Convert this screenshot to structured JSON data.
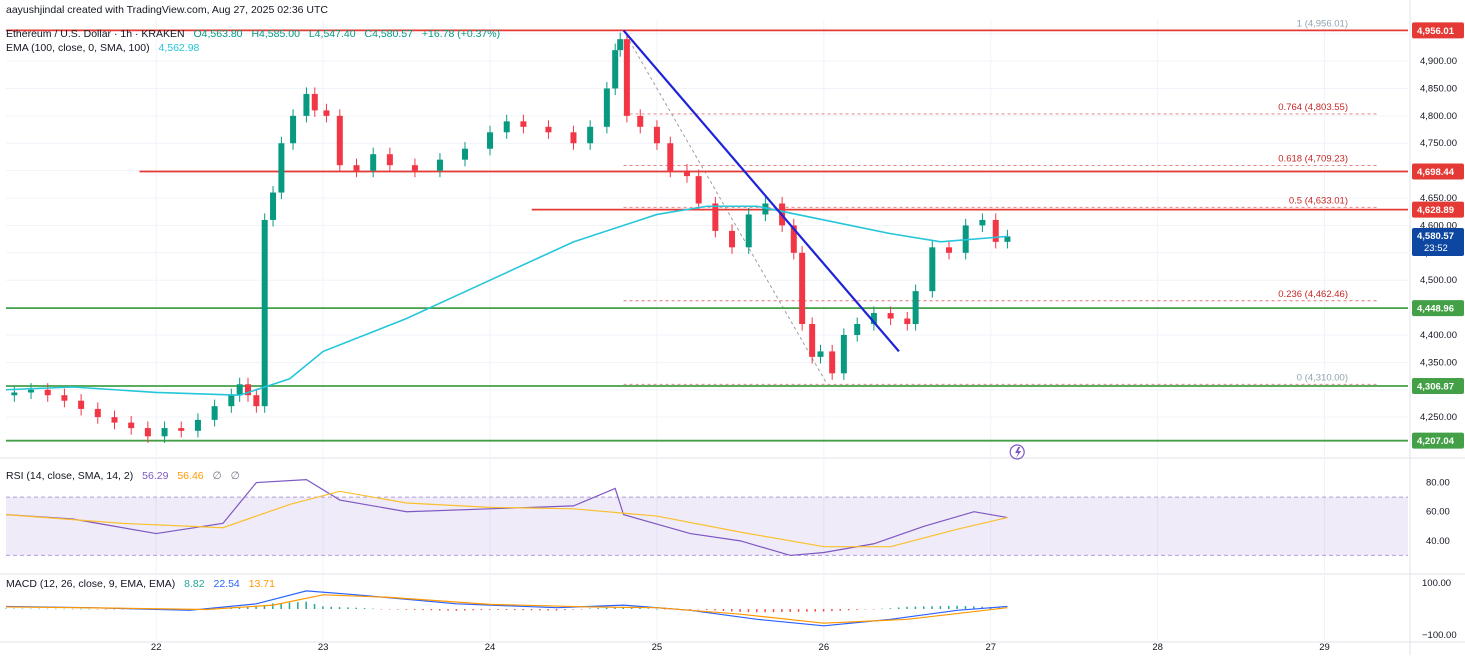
{
  "credit": "aayushjindal created with TradingView.com, Aug 27, 2025 02:36 UTC",
  "symbol": {
    "name": "Ethereum / U.S. Dollar · 1h · KRAKEN",
    "open": "O4,563.80",
    "high": "H4,585.00",
    "low": "L4,547.40",
    "close": "C4,580.57",
    "change": "+16.78 (+0.37%)"
  },
  "ema": {
    "label": "EMA (100, close, 0, SMA, 100)",
    "value": "4,562.98"
  },
  "rsi_header": {
    "label": "RSI (14, close, SMA, 14, 2)",
    "v1": "56.29",
    "v2": "56.46",
    "v3": "∅",
    "v4": "∅"
  },
  "macd_header": {
    "label": "MACD (12, 26, close, 9, EMA, EMA)",
    "v1": "8.82",
    "v2": "22.54",
    "v3": "13.71"
  },
  "currency": "USD",
  "colors": {
    "up": "#089981",
    "down": "#f23645",
    "ema": "#26c6da",
    "resistance": "#e53935",
    "support": "#43a047",
    "trendline": "#1e22d8",
    "rsi": "#7e57c2",
    "rsi_ma": "#fbc02d",
    "macd": "#2962ff",
    "signal": "#ff9800"
  },
  "chart_data": {
    "type": "candlestick",
    "title": "Ethereum / U.S. Dollar · 1h · KRAKEN",
    "ylim": [
      4190,
      4975
    ],
    "y_ticks": [
      4250,
      4300,
      4350,
      4400,
      4450,
      4500,
      4550,
      4600,
      4650,
      4700,
      4750,
      4800,
      4850,
      4900,
      4950
    ],
    "y_tick_labels": [
      "4,250.00",
      "4,300.00",
      "4,350.00",
      "4,400.00",
      "4,450.00",
      "4,500.00",
      "4,550.00",
      "4,600.00",
      "4,650.00",
      "4,700.00",
      "4,750.00",
      "4,800.00",
      "4,850.00",
      "4,900.00",
      "4,950.00"
    ],
    "x_ticks": [
      22,
      23,
      24,
      25,
      26,
      27,
      28,
      29
    ],
    "x_tick_labels": [
      "22",
      "23",
      "24",
      "25",
      "26",
      "27",
      "28",
      "29"
    ],
    "xlim": [
      21.1,
      29.5
    ],
    "close_series": [
      [
        21.15,
        4295
      ],
      [
        21.25,
        4300
      ],
      [
        21.35,
        4290
      ],
      [
        21.45,
        4280
      ],
      [
        21.55,
        4265
      ],
      [
        21.65,
        4250
      ],
      [
        21.75,
        4240
      ],
      [
        21.85,
        4230
      ],
      [
        21.95,
        4215
      ],
      [
        22.05,
        4230
      ],
      [
        22.15,
        4225
      ],
      [
        22.25,
        4245
      ],
      [
        22.35,
        4270
      ],
      [
        22.45,
        4290
      ],
      [
        22.5,
        4310
      ],
      [
        22.55,
        4290
      ],
      [
        22.6,
        4270
      ],
      [
        22.65,
        4610
      ],
      [
        22.7,
        4660
      ],
      [
        22.75,
        4750
      ],
      [
        22.82,
        4800
      ],
      [
        22.9,
        4840
      ],
      [
        22.95,
        4810
      ],
      [
        23.02,
        4800
      ],
      [
        23.1,
        4710
      ],
      [
        23.2,
        4700
      ],
      [
        23.3,
        4730
      ],
      [
        23.4,
        4710
      ],
      [
        23.55,
        4700
      ],
      [
        23.7,
        4720
      ],
      [
        23.85,
        4740
      ],
      [
        24.0,
        4770
      ],
      [
        24.1,
        4790
      ],
      [
        24.2,
        4780
      ],
      [
        24.35,
        4770
      ],
      [
        24.5,
        4750
      ],
      [
        24.6,
        4780
      ],
      [
        24.7,
        4850
      ],
      [
        24.75,
        4920
      ],
      [
        24.78,
        4940
      ],
      [
        24.82,
        4800
      ],
      [
        24.9,
        4780
      ],
      [
        25.0,
        4750
      ],
      [
        25.08,
        4700
      ],
      [
        25.18,
        4690
      ],
      [
        25.25,
        4640
      ],
      [
        25.35,
        4590
      ],
      [
        25.45,
        4560
      ],
      [
        25.55,
        4620
      ],
      [
        25.65,
        4640
      ],
      [
        25.75,
        4600
      ],
      [
        25.82,
        4550
      ],
      [
        25.87,
        4420
      ],
      [
        25.93,
        4360
      ],
      [
        25.98,
        4370
      ],
      [
        26.05,
        4330
      ],
      [
        26.12,
        4400
      ],
      [
        26.2,
        4420
      ],
      [
        26.3,
        4440
      ],
      [
        26.4,
        4430
      ],
      [
        26.5,
        4420
      ],
      [
        26.55,
        4480
      ],
      [
        26.65,
        4560
      ],
      [
        26.75,
        4550
      ],
      [
        26.85,
        4600
      ],
      [
        26.95,
        4610
      ],
      [
        27.03,
        4570
      ],
      [
        27.1,
        4580
      ]
    ],
    "ema100_series": [
      [
        21.1,
        4300
      ],
      [
        21.5,
        4305
      ],
      [
        22.0,
        4295
      ],
      [
        22.5,
        4290
      ],
      [
        22.8,
        4320
      ],
      [
        23.0,
        4370
      ],
      [
        23.5,
        4430
      ],
      [
        24.0,
        4500
      ],
      [
        24.5,
        4570
      ],
      [
        25.0,
        4620
      ],
      [
        25.3,
        4635
      ],
      [
        25.6,
        4635
      ],
      [
        26.0,
        4610
      ],
      [
        26.4,
        4585
      ],
      [
        26.7,
        4570
      ],
      [
        27.1,
        4580
      ]
    ],
    "horizontal_lines": [
      {
        "kind": "resistance",
        "y": 4956.01,
        "from_x": 21.1,
        "label": "4,956.01"
      },
      {
        "kind": "resistance",
        "y": 4698.44,
        "from_x": 21.9,
        "label": "4,698.44"
      },
      {
        "kind": "resistance",
        "y": 4628.89,
        "from_x": 24.25,
        "label": "4,628.89"
      },
      {
        "kind": "support",
        "y": 4448.96,
        "from_x": 21.1,
        "label": "4,448.96"
      },
      {
        "kind": "support",
        "y": 4306.87,
        "from_x": 21.1,
        "label": "4,306.87"
      },
      {
        "kind": "support",
        "y": 4207.04,
        "from_x": 21.1,
        "label": "4,207.04"
      }
    ],
    "fib_levels": [
      {
        "ratio": "1",
        "y": 4956.01,
        "label": "1 (4,956.01)"
      },
      {
        "ratio": "0.764",
        "y": 4803.55,
        "label": "0.764 (4,803.55)"
      },
      {
        "ratio": "0.618",
        "y": 4709.23,
        "label": "0.618 (4,709.23)"
      },
      {
        "ratio": "0.5",
        "y": 4633.01,
        "label": "0.5 (4,633.01)"
      },
      {
        "ratio": "0.236",
        "y": 4462.46,
        "label": "0.236 (4,462.46)"
      },
      {
        "ratio": "0",
        "y": 4310.0,
        "label": "0 (4,310.00)"
      }
    ],
    "trendline": [
      [
        24.8,
        4956
      ],
      [
        26.45,
        4370
      ]
    ],
    "last_price": {
      "value": "4,580.57",
      "countdown": "23:52"
    },
    "rsi": {
      "ylim": [
        20,
        90
      ],
      "ticks": [
        40,
        60,
        80
      ],
      "tick_labels": [
        "40.00",
        "60.00",
        "80.00"
      ],
      "band": [
        30,
        70
      ],
      "series": [
        [
          21.1,
          58
        ],
        [
          21.5,
          55
        ],
        [
          22.0,
          45
        ],
        [
          22.4,
          52
        ],
        [
          22.6,
          80
        ],
        [
          22.9,
          82
        ],
        [
          23.1,
          68
        ],
        [
          23.5,
          60
        ],
        [
          24.0,
          62
        ],
        [
          24.5,
          64
        ],
        [
          24.75,
          76
        ],
        [
          24.8,
          58
        ],
        [
          25.2,
          45
        ],
        [
          25.5,
          40
        ],
        [
          25.8,
          30
        ],
        [
          26.0,
          32
        ],
        [
          26.3,
          38
        ],
        [
          26.6,
          50
        ],
        [
          26.9,
          60
        ],
        [
          27.1,
          56
        ]
      ],
      "ma_series": [
        [
          21.1,
          58
        ],
        [
          21.8,
          52
        ],
        [
          22.4,
          49
        ],
        [
          22.8,
          65
        ],
        [
          23.1,
          74
        ],
        [
          23.5,
          66
        ],
        [
          24.0,
          63
        ],
        [
          24.5,
          62
        ],
        [
          25.0,
          57
        ],
        [
          25.5,
          46
        ],
        [
          26.0,
          36
        ],
        [
          26.4,
          36
        ],
        [
          26.8,
          48
        ],
        [
          27.1,
          56
        ]
      ]
    },
    "macd": {
      "ticks": [
        -100,
        100
      ],
      "tick_labels": [
        "−100.00",
        "100.00"
      ],
      "ylim": [
        -120,
        120
      ],
      "macd_series": [
        [
          21.1,
          10
        ],
        [
          21.6,
          5
        ],
        [
          22.2,
          -5
        ],
        [
          22.6,
          20
        ],
        [
          22.9,
          70
        ],
        [
          23.2,
          55
        ],
        [
          23.8,
          20
        ],
        [
          24.4,
          5
        ],
        [
          24.8,
          15
        ],
        [
          25.2,
          -5
        ],
        [
          25.6,
          -40
        ],
        [
          26.0,
          -65
        ],
        [
          26.4,
          -40
        ],
        [
          26.8,
          -5
        ],
        [
          27.1,
          10
        ]
      ],
      "signal_series": [
        [
          21.1,
          8
        ],
        [
          21.7,
          4
        ],
        [
          22.3,
          -2
        ],
        [
          22.7,
          15
        ],
        [
          23.0,
          55
        ],
        [
          23.4,
          45
        ],
        [
          24.0,
          18
        ],
        [
          24.6,
          8
        ],
        [
          25.0,
          5
        ],
        [
          25.5,
          -20
        ],
        [
          26.0,
          -55
        ],
        [
          26.5,
          -40
        ],
        [
          26.9,
          -10
        ],
        [
          27.1,
          5
        ]
      ]
    }
  }
}
